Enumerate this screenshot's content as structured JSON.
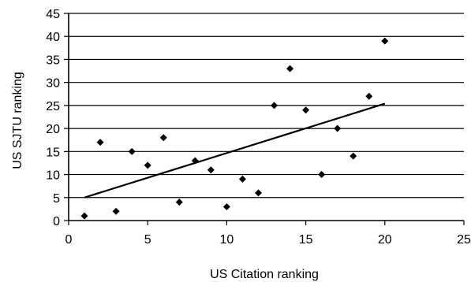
{
  "chart_data": {
    "type": "scatter",
    "title": "",
    "xlabel": "US Citation ranking",
    "ylabel": "US SJTU ranking",
    "xlim": [
      0,
      25
    ],
    "ylim": [
      0,
      45
    ],
    "x_ticks": [
      0,
      5,
      10,
      15,
      20,
      25
    ],
    "y_ticks": [
      0,
      5,
      10,
      15,
      20,
      25,
      30,
      35,
      40,
      45
    ],
    "grid": "horizontal",
    "legend": "none",
    "points": [
      {
        "x": 1,
        "y": 1
      },
      {
        "x": 2,
        "y": 17
      },
      {
        "x": 3,
        "y": 2
      },
      {
        "x": 4,
        "y": 15
      },
      {
        "x": 5,
        "y": 12
      },
      {
        "x": 6,
        "y": 18
      },
      {
        "x": 7,
        "y": 4
      },
      {
        "x": 8,
        "y": 13
      },
      {
        "x": 9,
        "y": 11
      },
      {
        "x": 10,
        "y": 3
      },
      {
        "x": 11,
        "y": 9
      },
      {
        "x": 12,
        "y": 6
      },
      {
        "x": 13,
        "y": 25
      },
      {
        "x": 14,
        "y": 33
      },
      {
        "x": 15,
        "y": 24
      },
      {
        "x": 16,
        "y": 10
      },
      {
        "x": 17,
        "y": 20
      },
      {
        "x": 18,
        "y": 14
      },
      {
        "x": 19,
        "y": 27
      },
      {
        "x": 20,
        "y": 39
      }
    ],
    "trendline": {
      "type": "linear",
      "from": {
        "x": 1,
        "y": 5
      },
      "to": {
        "x": 20,
        "y": 25.4
      }
    },
    "colors": {
      "marker": "#000000",
      "line": "#000000",
      "background": "#ffffff"
    }
  }
}
